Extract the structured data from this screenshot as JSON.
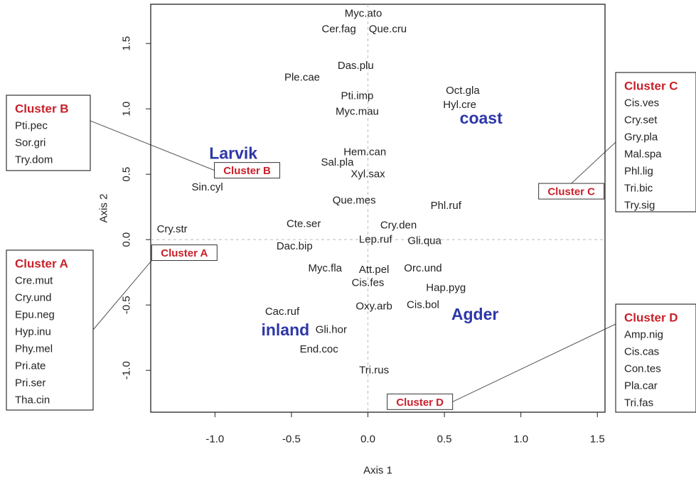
{
  "chart_data": {
    "type": "scatter",
    "xlabel": "Axis 1",
    "ylabel": "Axis 2",
    "xlim": [
      -1.42,
      1.55
    ],
    "ylim": [
      -1.32,
      1.8
    ],
    "xticks": [
      -1.0,
      -0.5,
      0.0,
      0.5,
      1.0,
      1.5
    ],
    "yticks": [
      -1.0,
      -0.5,
      0.0,
      0.5,
      1.0,
      1.5
    ],
    "tick_labels_x": [
      "-1.0",
      "-0.5",
      "0.0",
      "0.5",
      "1.0",
      "1.5"
    ],
    "tick_labels_y": [
      "-1.0",
      "-0.5",
      "0.0",
      "0.5",
      "1.0",
      "1.5"
    ],
    "reference_lines": {
      "x": 0,
      "y": 0,
      "style": "dashed"
    },
    "colors": {
      "species": "#222222",
      "region": "#2e37a8",
      "cluster": "#c8202a",
      "axis": "#222222",
      "reference": "#bbbbbb"
    },
    "species": [
      {
        "label": "Myc.ato",
        "x": -0.03,
        "y": 1.73
      },
      {
        "label": "Cer.fag",
        "x": -0.19,
        "y": 1.61
      },
      {
        "label": "Que.cru",
        "x": 0.13,
        "y": 1.61
      },
      {
        "label": "Das.plu",
        "x": -0.08,
        "y": 1.33
      },
      {
        "label": "Ple.cae",
        "x": -0.43,
        "y": 1.24
      },
      {
        "label": "Oct.gla",
        "x": 0.62,
        "y": 1.14
      },
      {
        "label": "Pti.imp",
        "x": -0.07,
        "y": 1.1
      },
      {
        "label": "Hyl.cre",
        "x": 0.6,
        "y": 1.03
      },
      {
        "label": "Myc.mau",
        "x": -0.07,
        "y": 0.98
      },
      {
        "label": "Hem.can",
        "x": -0.02,
        "y": 0.67
      },
      {
        "label": "Sal.pla",
        "x": -0.2,
        "y": 0.59
      },
      {
        "label": "Xyl.sax",
        "x": 0.0,
        "y": 0.5
      },
      {
        "label": "Sin.cyl",
        "x": -1.05,
        "y": 0.4
      },
      {
        "label": "Que.mes",
        "x": -0.09,
        "y": 0.3
      },
      {
        "label": "Phl.ruf",
        "x": 0.51,
        "y": 0.26
      },
      {
        "label": "Cry.str",
        "x": -1.28,
        "y": 0.08
      },
      {
        "label": "Cte.ser",
        "x": -0.42,
        "y": 0.12
      },
      {
        "label": "Cry.den",
        "x": 0.2,
        "y": 0.11
      },
      {
        "label": "Lep.ruf",
        "x": 0.05,
        "y": 0.0
      },
      {
        "label": "Gli.qua",
        "x": 0.37,
        "y": -0.01
      },
      {
        "label": "Dac.bip",
        "x": -0.48,
        "y": -0.05
      },
      {
        "label": "Myc.fla",
        "x": -0.28,
        "y": -0.22
      },
      {
        "label": "Att.pel",
        "x": 0.04,
        "y": -0.23
      },
      {
        "label": "Orc.und",
        "x": 0.36,
        "y": -0.22
      },
      {
        "label": "Cis.fes",
        "x": 0.0,
        "y": -0.33
      },
      {
        "label": "Hap.pyg",
        "x": 0.51,
        "y": -0.37
      },
      {
        "label": "Oxy.arb",
        "x": 0.04,
        "y": -0.51
      },
      {
        "label": "Cis.bol",
        "x": 0.36,
        "y": -0.5
      },
      {
        "label": "Cac.ruf",
        "x": -0.56,
        "y": -0.55
      },
      {
        "label": "Gli.hor",
        "x": -0.24,
        "y": -0.69
      },
      {
        "label": "End.coc",
        "x": -0.32,
        "y": -0.84
      },
      {
        "label": "Tri.rus",
        "x": 0.04,
        "y": -1.0
      }
    ],
    "regions": [
      {
        "label": "Larvik",
        "x": -0.88,
        "y": 0.66
      },
      {
        "label": "coast",
        "x": 0.74,
        "y": 0.93
      },
      {
        "label": "inland",
        "x": -0.54,
        "y": -0.69
      },
      {
        "label": "Agder",
        "x": 0.7,
        "y": -0.57
      }
    ],
    "cluster_tags": [
      {
        "label": "Cluster B",
        "x": -0.79,
        "y": 0.53
      },
      {
        "label": "Cluster A",
        "x": -1.2,
        "y": -0.1
      },
      {
        "label": "Cluster C",
        "x": 1.33,
        "y": 0.37
      },
      {
        "label": "Cluster D",
        "x": 0.34,
        "y": -1.24
      }
    ],
    "cluster_boxes": [
      {
        "id": "B",
        "title": "Cluster B",
        "members": [
          "Pti.pec",
          "Sor.gri",
          "Try.dom"
        ]
      },
      {
        "id": "A",
        "title": "Cluster A",
        "members": [
          "Cre.mut",
          "Cry.und",
          "Epu.neg",
          "Hyp.inu",
          "Phy.mel",
          "Pri.ate",
          "Pri.ser",
          "Tha.cin"
        ]
      },
      {
        "id": "C",
        "title": "Cluster C",
        "members": [
          "Cis.ves",
          "Cry.set",
          "Gry.pla",
          "Mal.spa",
          "Phl.lig",
          "Tri.bic",
          "Try.sig"
        ]
      },
      {
        "id": "D",
        "title": "Cluster D",
        "members": [
          "Amp.nig",
          "Cis.cas",
          "Con.tes",
          "Pla.car",
          "Tri.fas"
        ]
      }
    ]
  }
}
